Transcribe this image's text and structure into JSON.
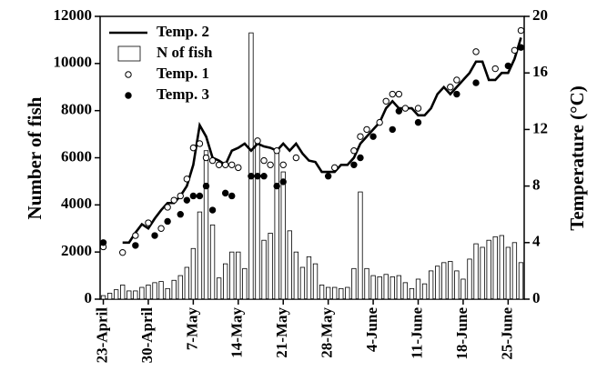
{
  "chart_data": {
    "type": "combo",
    "y_label": "Number of fish",
    "y2_label": "Temperature (°C)",
    "categories": [
      "23-April",
      null,
      null,
      null,
      null,
      null,
      null,
      "30-April",
      null,
      null,
      null,
      null,
      null,
      null,
      "7-May",
      null,
      null,
      null,
      null,
      null,
      null,
      "14-May",
      null,
      null,
      null,
      null,
      null,
      null,
      "21-May",
      null,
      null,
      null,
      null,
      null,
      null,
      "28-May",
      null,
      null,
      null,
      null,
      null,
      null,
      "4-June",
      null,
      null,
      null,
      null,
      null,
      null,
      "11-June",
      null,
      null,
      null,
      null,
      null,
      null,
      "18-June",
      null,
      null,
      null,
      null,
      null,
      null,
      "25-June",
      null,
      null
    ],
    "ylim": [
      0,
      12000
    ],
    "yticks": [
      0,
      2000,
      4000,
      6000,
      8000,
      10000,
      12000
    ],
    "y2lim": [
      0,
      20
    ],
    "y2ticks": [
      0,
      4,
      8,
      12,
      16,
      20
    ],
    "legend": "upper left",
    "series": [
      {
        "name": "Temp. 2",
        "type": "line",
        "axis": "y2",
        "color": "#000000",
        "values": [
          null,
          null,
          null,
          4.0,
          4.0,
          4.7,
          5.3,
          5.0,
          5.7,
          6.3,
          6.8,
          6.8,
          7.3,
          8.0,
          9.5,
          12.3,
          11.5,
          10.0,
          9.8,
          9.5,
          10.5,
          10.7,
          11.0,
          10.5,
          11.0,
          10.8,
          10.7,
          10.5,
          11.0,
          10.5,
          11.0,
          10.3,
          9.8,
          9.7,
          9.0,
          9.0,
          9.0,
          9.5,
          9.5,
          10.0,
          11.0,
          11.5,
          12.0,
          12.5,
          13.5,
          14.0,
          13.5,
          13.5,
          13.5,
          13.0,
          13.0,
          13.5,
          14.5,
          15.0,
          14.5,
          15.0,
          15.5,
          16.0,
          16.8,
          16.8,
          15.5,
          15.5,
          16.0,
          16.0,
          17.0,
          18.5
        ]
      },
      {
        "name": "N of fish",
        "type": "bar",
        "color": "#ffffff",
        "values": [
          150,
          250,
          400,
          600,
          350,
          350,
          500,
          600,
          700,
          750,
          450,
          800,
          1000,
          1350,
          2150,
          3700,
          6300,
          3150,
          900,
          1500,
          2000,
          2000,
          1300,
          11300,
          6700,
          2500,
          2800,
          6300,
          5400,
          2900,
          2000,
          1350,
          1800,
          1500,
          600,
          500,
          500,
          450,
          500,
          1300,
          4550,
          1300,
          1000,
          950,
          1050,
          950,
          1000,
          700,
          450,
          850,
          650,
          1200,
          1400,
          1550,
          1600,
          1200,
          850,
          1700,
          2350,
          2200,
          2500,
          2650,
          2700,
          2200,
          2400,
          1550
        ]
      },
      {
        "name": "Temp. 1",
        "type": "scatter",
        "axis": "y2",
        "color": "#ffffff",
        "values": [
          3.7,
          null,
          null,
          3.3,
          null,
          4.5,
          null,
          5.4,
          null,
          5.0,
          6.5,
          7.0,
          7.3,
          8.5,
          10.7,
          11.0,
          10.0,
          9.8,
          9.5,
          9.5,
          9.5,
          9.3,
          null,
          null,
          11.2,
          9.8,
          9.5,
          10.5,
          9.5,
          null,
          10.0,
          null,
          null,
          null,
          null,
          null,
          9.3,
          null,
          null,
          10.5,
          11.5,
          12.0,
          null,
          12.5,
          14.0,
          14.5,
          14.5,
          13.5,
          null,
          13.5,
          null,
          null,
          null,
          null,
          15.0,
          15.5,
          null,
          null,
          17.5,
          null,
          null,
          16.3,
          null,
          null,
          17.6,
          19.0
        ]
      },
      {
        "name": "Temp. 3",
        "type": "scatter",
        "axis": "y2",
        "color": "#000000",
        "values": [
          4.0,
          null,
          null,
          null,
          null,
          3.8,
          null,
          null,
          4.5,
          null,
          5.5,
          null,
          6.0,
          7.0,
          7.3,
          7.3,
          8.0,
          6.3,
          null,
          7.5,
          7.3,
          null,
          null,
          8.7,
          8.7,
          8.7,
          null,
          8.0,
          8.3,
          null,
          null,
          null,
          null,
          null,
          null,
          8.7,
          null,
          null,
          null,
          9.5,
          10.0,
          null,
          11.5,
          null,
          null,
          12.0,
          13.3,
          null,
          null,
          12.5,
          null,
          null,
          null,
          null,
          null,
          14.5,
          null,
          null,
          15.3,
          null,
          null,
          null,
          null,
          16.5,
          null,
          17.8
        ]
      }
    ]
  }
}
